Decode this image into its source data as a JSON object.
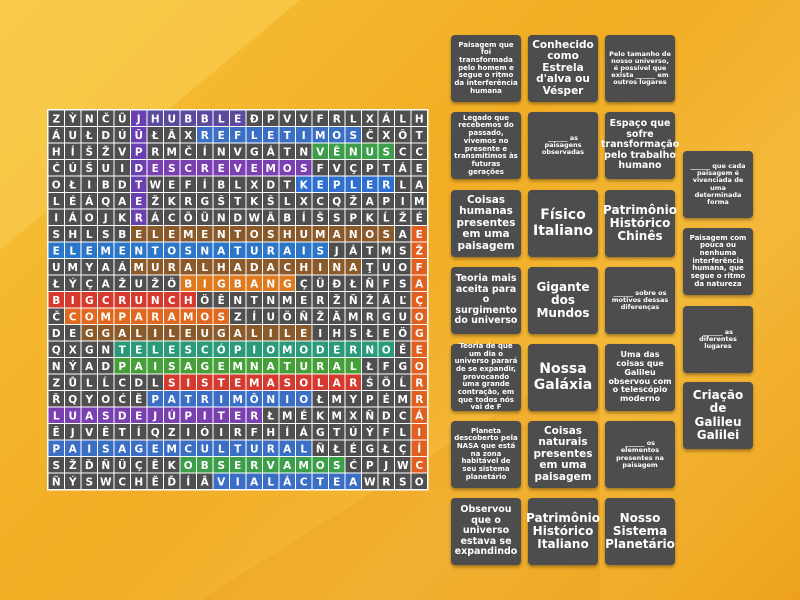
{
  "word_search": {
    "rows": [
      "ZỲNČŨJHUBBLEÐPVVFRLXÁLH",
      "ÁUŁDÚŨŁĂXREFLETIMOSČXÔT",
      "HÍŠŽVPRMČÍNVGÁTNVÊNUSCC",
      "ĆÚŠUIDESCREVEMOSFVÇPTÁE",
      "OŁIBDTWEFÍBLXDTKEPLERLA",
      "LÉÁQAEŽKRGŠTKŠLXCQŽAPIM",
      "IÁOJKRÁCÖÜNDWÄBÍŠSPKĹŽÉ",
      "SHLSBELEMENTOSHUMANOSAE",
      "ELEMENTOSNATURAISJÁTMSŽ",
      "UMYAÁMURALHADACHINAŢUOF",
      "ŁÝÇAŽUŽÖBIGBANGÇÜÐŁÑFSA",
      "BIGCRUNCHÖÊNTNMERŽÑŽĂĽÇ",
      "ČCOMPARAMOSZÍUÖÑŽĂMRGUO",
      "DEGGALILEUGALILEIHSŁEÖG",
      "QXGNTELESCÓPIOMODERNOĚE",
      "NÝADPAISAGEMNATURALŁFGO",
      "ZŮLĹCDLSISTEMASOLARŚÖĹR",
      "ŘQYOĆĔPATRIMÔNIOŁMYPÉMR",
      "LUASDEJÚPITERŁMÉKMXÑDCÁ",
      "ÊJVĚTÍQZIÓIRFHÍÁGTÚÝFLI",
      "PAISAGEMCULTURALÑŁÉGŁÇÍ",
      "SŽĎÑÜÇÊKOBSERVAMOSĆPJWC",
      "ÑÝSWCHĚĎÍÂVIALÁCTEAWRSO"
    ]
  },
  "cards": [
    [
      "Paisagem que foi transformada pelo homem e segue o ritmo da interferência humana",
      "Legado que recebemos do passado, vivemos no presente e transmitimos às futuras gerações",
      "Coisas humanas presentes em uma paisagem",
      "Teoria mais aceita para o surgimento do universo",
      "Teoria de que um dia o universo parará de se expandir, provocando uma grande contração, em que todos nós vai de F",
      "Planeta descoberto pela NASA que está na zona habitável de seu sistema planetário",
      "Observou que o universo estava se expandindo"
    ],
    [
      "Conhecido como Estrela d'alva ou Vésper",
      "______ as paisagens observadas",
      "Físico Italiano",
      "Gigante dos Mundos",
      "Nossa Galáxia",
      "Coisas naturais presentes em uma paisagem",
      "Patrimônio Histórico Italiano"
    ],
    [
      "Pelo tamanho de nosso universo, é possível que exista ______ em outros lugares",
      "Espaço que sofre transformação pelo trabalho humano",
      "Patrimônio Histórico Chinês",
      "______ sobre os motivos dessas diferenças",
      "Uma das coisas que Galileu observou com o telescópio moderno",
      "______ os elementos presentes na paisagem",
      "Nosso Sistema Planetário"
    ],
    [
      "______ que cada paisagem é vivenciada de uma determinada forma",
      "Paisagem com pouca ou nenhuma interferência humana, que segue o ritmo da natureza",
      "______ as diferentes lugares",
      "Criação de Galileu Galilei"
    ]
  ]
}
